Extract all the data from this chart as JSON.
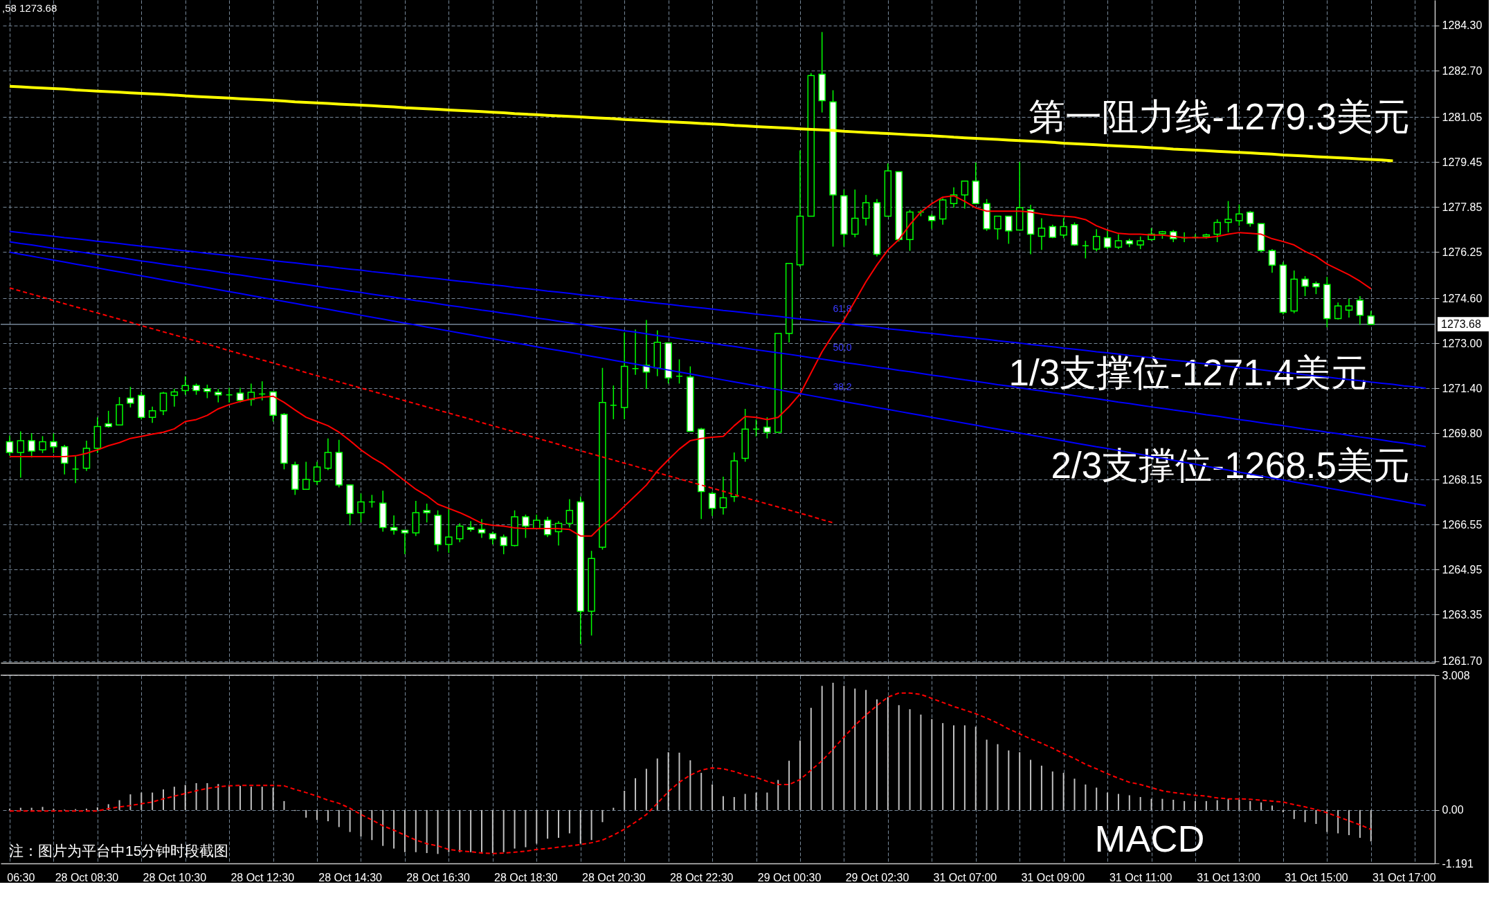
{
  "chart_data": [
    {
      "type": "candlestick",
      "categories": [
        null,
        null,
        null,
        null,
        null,
        null,
        null,
        null,
        null,
        null,
        null,
        null,
        null,
        null,
        null,
        null,
        null,
        null,
        null,
        null,
        null,
        null,
        null,
        null,
        null,
        null,
        null,
        null,
        null,
        null,
        null,
        null,
        null,
        null,
        null,
        null,
        null,
        null,
        null,
        null,
        null,
        null,
        null,
        null,
        null,
        null,
        null,
        null,
        null,
        null,
        null,
        null,
        null,
        null,
        null,
        null,
        null,
        null,
        null,
        null,
        null,
        null,
        null,
        null,
        null,
        null,
        null,
        null,
        null,
        null,
        null,
        null,
        null,
        null,
        null,
        null,
        null,
        null,
        null,
        null,
        null,
        null,
        null,
        null,
        null,
        null,
        null,
        null,
        null,
        null,
        null,
        null,
        null,
        null,
        null,
        null,
        null,
        null,
        null,
        null,
        null,
        null,
        null,
        null,
        null,
        null,
        null,
        null,
        null,
        null,
        null,
        null,
        null,
        null,
        null,
        null,
        null,
        null,
        null,
        null,
        null,
        null,
        null,
        null,
        null,
        null,
        null,
        null,
        null,
        null
      ],
      "ohlc": [
        [
          1269.5,
          1269.72,
          1269.01,
          1269.12
        ],
        [
          1269.12,
          1269.87,
          1268.22,
          1269.54
        ],
        [
          1269.54,
          1269.8,
          1268.94,
          1269.17
        ],
        [
          1269.21,
          1269.7,
          1269.1,
          1269.5
        ],
        [
          1269.5,
          1269.8,
          1269.1,
          1269.32
        ],
        [
          1269.32,
          1269.39,
          1268.34,
          1268.74
        ],
        [
          1268.53,
          1268.99,
          1268.03,
          1268.53
        ],
        [
          1268.56,
          1269.54,
          1268.46,
          1269.27
        ],
        [
          1269.27,
          1270.37,
          1269.1,
          1270.04
        ],
        [
          1270.14,
          1270.6,
          1270.0,
          1270.04
        ],
        [
          1270.1,
          1271.09,
          1270.1,
          1270.82
        ],
        [
          1271.05,
          1271.45,
          1270.72,
          1270.87
        ],
        [
          1271.15,
          1271.27,
          1270.29,
          1270.37
        ],
        [
          1270.37,
          1270.75,
          1270.17,
          1270.6
        ],
        [
          1270.6,
          1271.27,
          1270.45,
          1271.23
        ],
        [
          1271.15,
          1271.38,
          1270.75,
          1271.27
        ],
        [
          1271.32,
          1271.83,
          1271.17,
          1271.5
        ],
        [
          1271.5,
          1271.57,
          1271.17,
          1271.32
        ],
        [
          1271.38,
          1271.53,
          1271.05,
          1271.29
        ],
        [
          1271.26,
          1271.38,
          1270.9,
          1271.17
        ],
        [
          1271.17,
          1271.42,
          1270.9,
          1271.17
        ],
        [
          1271.23,
          1271.42,
          1270.9,
          1270.97
        ],
        [
          1271.0,
          1271.57,
          1270.78,
          1271.26
        ],
        [
          1271.2,
          1271.65,
          1270.97,
          1271.2
        ],
        [
          1271.27,
          1271.27,
          1270.22,
          1270.44
        ],
        [
          1270.47,
          1270.52,
          1268.52,
          1268.74
        ],
        [
          1268.68,
          1268.79,
          1267.61,
          1267.81
        ],
        [
          1267.81,
          1268.79,
          1267.81,
          1268.16
        ],
        [
          1268.09,
          1268.79,
          1267.96,
          1268.6
        ],
        [
          1268.56,
          1269.62,
          1268.49,
          1269.12
        ],
        [
          1269.12,
          1269.57,
          1267.88,
          1267.96
        ],
        [
          1267.96,
          1267.96,
          1266.53,
          1266.95
        ],
        [
          1266.98,
          1267.66,
          1266.63,
          1267.36
        ],
        [
          1267.36,
          1267.61,
          1267.16,
          1267.36
        ],
        [
          1267.32,
          1267.76,
          1266.3,
          1266.45
        ],
        [
          1266.45,
          1266.88,
          1266.2,
          1266.35
        ],
        [
          1266.35,
          1266.35,
          1265.5,
          1266.26
        ],
        [
          1266.26,
          1267.4,
          1266.15,
          1266.98
        ],
        [
          1267.05,
          1267.3,
          1266.63,
          1266.98
        ],
        [
          1266.88,
          1267.06,
          1265.6,
          1265.85
        ],
        [
          1265.85,
          1267.16,
          1265.55,
          1266.11
        ],
        [
          1266.05,
          1266.6,
          1265.93,
          1266.5
        ],
        [
          1266.45,
          1266.68,
          1266.3,
          1266.38
        ],
        [
          1266.38,
          1266.75,
          1266.08,
          1266.26
        ],
        [
          1266.23,
          1266.3,
          1265.85,
          1266.05
        ],
        [
          1266.11,
          1266.2,
          1265.5,
          1265.81
        ],
        [
          1265.81,
          1267.06,
          1265.78,
          1266.83
        ],
        [
          1266.83,
          1266.91,
          1266.08,
          1266.5
        ],
        [
          1266.41,
          1266.91,
          1266.38,
          1266.71
        ],
        [
          1266.71,
          1266.83,
          1266.11,
          1266.2
        ],
        [
          1266.3,
          1266.68,
          1265.81,
          1266.6
        ],
        [
          1266.6,
          1267.46,
          1266.45,
          1267.06
        ],
        [
          1267.36,
          1267.55,
          1262.31,
          1263.47
        ],
        [
          1263.47,
          1265.62,
          1262.61,
          1265.35
        ],
        [
          1265.75,
          1272.13,
          1265.66,
          1270.9
        ],
        [
          1270.8,
          1271.5,
          1270.3,
          1270.8
        ],
        [
          1270.72,
          1273.38,
          1270.3,
          1272.18
        ],
        [
          1272.1,
          1273.49,
          1271.88,
          1272.1
        ],
        [
          1272.22,
          1273.83,
          1271.38,
          1271.98
        ],
        [
          1272.13,
          1273.46,
          1271.83,
          1273.04
        ],
        [
          1273.01,
          1273.01,
          1271.57,
          1271.77
        ],
        [
          1271.83,
          1272.43,
          1271.57,
          1271.83
        ],
        [
          1271.8,
          1272.18,
          1269.87,
          1269.87
        ],
        [
          1269.95,
          1269.99,
          1266.75,
          1267.73
        ],
        [
          1267.66,
          1267.73,
          1266.86,
          1267.13
        ],
        [
          1267.16,
          1268.26,
          1266.91,
          1267.51
        ],
        [
          1267.55,
          1269.12,
          1267.36,
          1268.82
        ],
        [
          1268.91,
          1270.67,
          1268.79,
          1269.95
        ],
        [
          1269.95,
          1270.29,
          1269.69,
          1269.95
        ],
        [
          1270.02,
          1270.37,
          1269.62,
          1269.84
        ],
        [
          1269.84,
          1273.35,
          1269.84,
          1273.35
        ],
        [
          1273.35,
          1275.84,
          1273.03,
          1275.84
        ],
        [
          1275.79,
          1279.86,
          1275.72,
          1277.52
        ],
        [
          1277.52,
          1282.61,
          1277.52,
          1282.52
        ],
        [
          1282.57,
          1284.07,
          1281.21,
          1281.63
        ],
        [
          1281.59,
          1282.0,
          1276.44,
          1278.28
        ],
        [
          1278.25,
          1278.47,
          1276.44,
          1276.88
        ],
        [
          1276.88,
          1278.47,
          1276.77,
          1277.45
        ],
        [
          1277.45,
          1278.28,
          1277.19,
          1278.0
        ],
        [
          1278.0,
          1278.13,
          1276.09,
          1276.17
        ],
        [
          1277.52,
          1279.4,
          1277.52,
          1279.13
        ],
        [
          1279.1,
          1279.1,
          1276.62,
          1276.69
        ],
        [
          1276.69,
          1277.75,
          1276.29,
          1277.67
        ],
        [
          1277.67,
          1277.75,
          1277.52,
          1277.67
        ],
        [
          1277.52,
          1277.6,
          1277.07,
          1277.37
        ],
        [
          1277.42,
          1278.16,
          1277.22,
          1278.1
        ],
        [
          1277.97,
          1278.55,
          1277.82,
          1278.28
        ],
        [
          1278.28,
          1278.77,
          1277.79,
          1278.77
        ],
        [
          1278.77,
          1279.43,
          1277.97,
          1277.97
        ],
        [
          1277.97,
          1278.13,
          1277.0,
          1277.07
        ],
        [
          1277.07,
          1277.52,
          1276.69,
          1277.52
        ],
        [
          1277.52,
          1277.52,
          1276.54,
          1277.0
        ],
        [
          1277.03,
          1279.45,
          1277.03,
          1277.82
        ],
        [
          1277.75,
          1277.93,
          1276.17,
          1276.88
        ],
        [
          1276.81,
          1277.45,
          1276.32,
          1277.1
        ],
        [
          1277.15,
          1277.22,
          1276.74,
          1276.77
        ],
        [
          1276.85,
          1277.45,
          1276.74,
          1277.15
        ],
        [
          1277.22,
          1277.3,
          1276.47,
          1276.5
        ],
        [
          1276.47,
          1276.65,
          1276.02,
          1276.47
        ],
        [
          1276.35,
          1277.06,
          1276.27,
          1276.8
        ],
        [
          1276.75,
          1277.03,
          1276.35,
          1276.42
        ],
        [
          1276.42,
          1276.88,
          1276.35,
          1276.65
        ],
        [
          1276.65,
          1276.72,
          1276.42,
          1276.54
        ],
        [
          1276.5,
          1276.8,
          1276.35,
          1276.65
        ],
        [
          1276.69,
          1277.1,
          1276.65,
          1276.88
        ],
        [
          1276.9,
          1277.0,
          1276.72,
          1276.97
        ],
        [
          1276.97,
          1277.03,
          1276.6,
          1276.72
        ],
        [
          1276.75,
          1276.95,
          1276.6,
          1276.75
        ],
        [
          1276.77,
          1276.88,
          1276.72,
          1276.77
        ],
        [
          1276.8,
          1276.9,
          1276.72,
          1276.86
        ],
        [
          1276.88,
          1277.41,
          1276.6,
          1277.3
        ],
        [
          1277.3,
          1278.06,
          1276.95,
          1277.41
        ],
        [
          1277.36,
          1277.94,
          1277.18,
          1277.6
        ],
        [
          1277.66,
          1277.71,
          1277.15,
          1277.26
        ],
        [
          1277.26,
          1277.26,
          1276.24,
          1276.3
        ],
        [
          1276.3,
          1276.35,
          1275.51,
          1275.78
        ],
        [
          1275.78,
          1275.89,
          1274.03,
          1274.1
        ],
        [
          1274.15,
          1275.59,
          1274.07,
          1275.28
        ],
        [
          1275.28,
          1275.39,
          1274.68,
          1275.03
        ],
        [
          1275.13,
          1275.2,
          1274.75,
          1275.01
        ],
        [
          1275.09,
          1275.36,
          1273.57,
          1273.88
        ],
        [
          1273.88,
          1274.45,
          1273.85,
          1274.33
        ],
        [
          1274.18,
          1274.59,
          1273.92,
          1274.33
        ],
        [
          1274.53,
          1274.68,
          1273.66,
          1274.0
        ],
        [
          1273.97,
          1274.15,
          1273.66,
          1273.68
        ],
        null,
        null,
        null,
        null,
        null
      ],
      "series": [
        {
          "type": "line",
          "color": "#ff0000",
          "values": [
            1268.97,
            1268.97,
            1268.97,
            1268.97,
            1268.97,
            1268.97,
            1269.0,
            1269.09,
            1269.21,
            1269.36,
            1269.47,
            1269.62,
            1269.69,
            1269.77,
            1269.84,
            1269.96,
            1270.22,
            1270.29,
            1270.44,
            1270.67,
            1270.82,
            1270.93,
            1271.02,
            1271.08,
            1271.12,
            1270.9,
            1270.63,
            1270.37,
            1270.22,
            1270.07,
            1269.84,
            1269.54,
            1269.21,
            1268.94,
            1268.71,
            1268.41,
            1268.11,
            1267.81,
            1267.58,
            1267.28,
            1267.13,
            1266.98,
            1266.8,
            1266.6,
            1266.53,
            1266.5,
            1266.44,
            1266.41,
            1266.41,
            1266.41,
            1266.41,
            1266.38,
            1266.15,
            1266.15,
            1266.53,
            1266.83,
            1267.21,
            1267.58,
            1267.96,
            1268.46,
            1268.86,
            1269.24,
            1269.54,
            1269.62,
            1269.66,
            1269.69,
            1270.07,
            1270.4,
            1270.37,
            1270.29,
            1270.37,
            1270.75,
            1271.2,
            1271.95,
            1272.7,
            1273.31,
            1273.83,
            1274.51,
            1275.19,
            1275.79,
            1276.32,
            1276.69,
            1277.22,
            1277.67,
            1277.97,
            1278.2,
            1278.25,
            1278.05,
            1277.82,
            1277.7,
            1277.7,
            1277.7,
            1277.7,
            1277.67,
            1277.6,
            1277.55,
            1277.52,
            1277.49,
            1277.4,
            1277.18,
            1277.03,
            1276.91,
            1276.88,
            1276.88,
            1276.85,
            1276.85,
            1276.8,
            1276.76,
            1276.76,
            1276.76,
            1276.8,
            1276.88,
            1276.94,
            1276.91,
            1276.88,
            1276.72,
            1276.62,
            1276.5,
            1276.27,
            1276.09,
            1275.82,
            1275.63,
            1275.44,
            1275.21,
            1274.94,
            null,
            null,
            null,
            null,
            null
          ]
        },
        {
          "type": "line",
          "color": "#ffff00",
          "values": [
            1282.14,
            1282.12,
            1282.1,
            1282.08,
            1282.06,
            1282.04,
            1282.01,
            1281.99,
            1281.97,
            1281.95,
            1281.93,
            1281.91,
            1281.89,
            1281.87,
            1281.85,
            1281.83,
            1281.8,
            1281.78,
            1281.76,
            1281.74,
            1281.72,
            1281.7,
            1281.68,
            1281.66,
            1281.64,
            1281.62,
            1281.59,
            1281.57,
            1281.55,
            1281.53,
            1281.51,
            1281.49,
            1281.47,
            1281.45,
            1281.43,
            1281.41,
            1281.38,
            1281.36,
            1281.34,
            1281.32,
            1281.3,
            1281.28,
            1281.26,
            1281.24,
            1281.22,
            1281.2,
            1281.17,
            1281.15,
            1281.13,
            1281.11,
            1281.09,
            1281.07,
            1281.05,
            1281.03,
            1281.01,
            1280.99,
            1280.96,
            1280.94,
            1280.92,
            1280.9,
            1280.88,
            1280.86,
            1280.84,
            1280.82,
            1280.8,
            1280.78,
            1280.75,
            1280.73,
            1280.71,
            1280.69,
            1280.67,
            1280.65,
            1280.63,
            1280.61,
            1280.59,
            1280.57,
            1280.54,
            1280.52,
            1280.5,
            1280.48,
            1280.46,
            1280.44,
            1280.42,
            1280.4,
            1280.38,
            1280.36,
            1280.33,
            1280.31,
            1280.29,
            1280.27,
            1280.25,
            1280.23,
            1280.21,
            1280.19,
            1280.17,
            1280.15,
            1280.12,
            1280.1,
            1280.08,
            1280.06,
            1280.04,
            1280.02,
            1280.0,
            1279.98,
            1279.96,
            1279.94,
            1279.91,
            1279.89,
            1279.87,
            1279.85,
            1279.83,
            1279.81,
            1279.79,
            1279.77,
            1279.75,
            1279.73,
            1279.7,
            1279.68,
            1279.66,
            1279.64,
            1279.62,
            1279.6,
            1279.58,
            1279.56,
            1279.54,
            1279.52,
            1279.49,
            null,
            null,
            null
          ]
        },
        {
          "type": "line",
          "color": "#0000ff",
          "values": [
            1276.98,
            1276.94,
            1276.89,
            1276.85,
            1276.81,
            1276.76,
            1276.72,
            1276.68,
            1276.63,
            1276.59,
            1276.55,
            1276.5,
            1276.46,
            1276.42,
            1276.38,
            1276.33,
            1276.29,
            1276.25,
            1276.2,
            1276.16,
            1276.12,
            1276.07,
            1276.03,
            1275.99,
            1275.94,
            1275.9,
            1275.86,
            1275.81,
            1275.77,
            1275.73,
            1275.68,
            1275.64,
            1275.6,
            1275.55,
            1275.51,
            1275.47,
            1275.42,
            1275.38,
            1275.34,
            1275.3,
            1275.25,
            1275.21,
            1275.17,
            1275.12,
            1275.08,
            1275.04,
            1274.99,
            1274.95,
            1274.91,
            1274.86,
            1274.82,
            1274.78,
            1274.73,
            1274.69,
            1274.65,
            1274.6,
            1274.56,
            1274.52,
            1274.47,
            1274.43,
            1274.39,
            1274.34,
            1274.3,
            1274.26,
            1274.22,
            1274.17,
            1274.13,
            1274.09,
            1274.04,
            1274.0,
            1273.96,
            1273.91,
            1273.87,
            1273.83,
            1273.78,
            1273.74,
            1273.7,
            1273.65,
            1273.61,
            1273.57,
            1273.52,
            1273.48,
            1273.44,
            1273.39,
            1273.35,
            1273.31,
            1273.26,
            1273.22,
            1273.18,
            1273.14,
            1273.09,
            1273.05,
            1273.01,
            1272.96,
            1272.92,
            1272.88,
            1272.83,
            1272.79,
            1272.75,
            1272.7,
            1272.66,
            1272.62,
            1272.57,
            1272.53,
            1272.49,
            1272.44,
            1272.4,
            1272.36,
            1272.31,
            1272.27,
            1272.23,
            1272.18,
            1272.14,
            1272.1,
            1272.06,
            1272.01,
            1271.97,
            1271.93,
            1271.88,
            1271.84,
            1271.8,
            1271.75,
            1271.71,
            1271.67,
            1271.62,
            1271.58,
            1271.54,
            1271.49,
            1271.45,
            1271.41
          ]
        },
        {
          "type": "line",
          "color": "#0000ff",
          "values": [
            1276.61,
            1276.55,
            1276.5,
            1276.44,
            1276.38,
            1276.33,
            1276.27,
            1276.22,
            1276.16,
            1276.1,
            1276.05,
            1275.99,
            1275.93,
            1275.88,
            1275.82,
            1275.76,
            1275.71,
            1275.65,
            1275.6,
            1275.54,
            1275.48,
            1275.43,
            1275.37,
            1275.31,
            1275.26,
            1275.2,
            1275.14,
            1275.09,
            1275.03,
            1274.97,
            1274.92,
            1274.86,
            1274.81,
            1274.75,
            1274.69,
            1274.64,
            1274.58,
            1274.52,
            1274.47,
            1274.41,
            1274.35,
            1274.3,
            1274.24,
            1274.18,
            1274.13,
            1274.07,
            1274.02,
            1273.96,
            1273.9,
            1273.85,
            1273.79,
            1273.73,
            1273.68,
            1273.62,
            1273.56,
            1273.51,
            1273.45,
            1273.4,
            1273.34,
            1273.28,
            1273.23,
            1273.17,
            1273.11,
            1273.06,
            1273.0,
            1272.94,
            1272.89,
            1272.83,
            1272.77,
            1272.72,
            1272.66,
            1272.61,
            1272.55,
            1272.49,
            1272.44,
            1272.38,
            1272.32,
            1272.27,
            1272.21,
            1272.15,
            1272.1,
            1272.04,
            1271.99,
            1271.93,
            1271.87,
            1271.82,
            1271.76,
            1271.7,
            1271.65,
            1271.59,
            1271.53,
            1271.48,
            1271.42,
            1271.36,
            1271.31,
            1271.25,
            1271.2,
            1271.14,
            1271.08,
            1271.03,
            1270.97,
            1270.91,
            1270.86,
            1270.8,
            1270.74,
            1270.69,
            1270.63,
            1270.58,
            1270.52,
            1270.46,
            1270.41,
            1270.35,
            1270.29,
            1270.24,
            1270.18,
            1270.12,
            1270.07,
            1270.01,
            1269.95,
            1269.9,
            1269.84,
            1269.79,
            1269.73,
            1269.67,
            1269.62,
            1269.56,
            1269.5,
            1269.45,
            1269.39,
            1269.33
          ]
        },
        {
          "type": "line",
          "color": "#0000ff",
          "values": [
            1276.24,
            1276.17,
            1276.1,
            1276.03,
            1275.96,
            1275.89,
            1275.82,
            1275.75,
            1275.68,
            1275.61,
            1275.54,
            1275.47,
            1275.4,
            1275.33,
            1275.26,
            1275.19,
            1275.12,
            1275.05,
            1274.98,
            1274.91,
            1274.84,
            1274.77,
            1274.7,
            1274.63,
            1274.56,
            1274.49,
            1274.42,
            1274.35,
            1274.28,
            1274.21,
            1274.14,
            1274.07,
            1274.0,
            1273.93,
            1273.86,
            1273.79,
            1273.72,
            1273.65,
            1273.58,
            1273.51,
            1273.44,
            1273.37,
            1273.3,
            1273.23,
            1273.16,
            1273.09,
            1273.02,
            1272.95,
            1272.88,
            1272.81,
            1272.75,
            1272.68,
            1272.61,
            1272.54,
            1272.47,
            1272.4,
            1272.33,
            1272.26,
            1272.19,
            1272.12,
            1272.05,
            1271.98,
            1271.91,
            1271.84,
            1271.77,
            1271.7,
            1271.63,
            1271.56,
            1271.49,
            1271.42,
            1271.35,
            1271.28,
            1271.21,
            1271.14,
            1271.07,
            1271.0,
            1270.93,
            1270.86,
            1270.79,
            1270.72,
            1270.65,
            1270.58,
            1270.51,
            1270.44,
            1270.37,
            1270.3,
            1270.23,
            1270.16,
            1270.09,
            1270.02,
            1269.95,
            1269.88,
            1269.81,
            1269.74,
            1269.67,
            1269.6,
            1269.53,
            1269.46,
            1269.39,
            1269.32,
            1269.26,
            1269.19,
            1269.12,
            1269.05,
            1268.98,
            1268.91,
            1268.84,
            1268.77,
            1268.7,
            1268.63,
            1268.56,
            1268.49,
            1268.42,
            1268.35,
            1268.28,
            1268.21,
            1268.14,
            1268.07,
            1268.0,
            1267.93,
            1267.86,
            1267.79,
            1267.72,
            1267.65,
            1267.58,
            1267.51,
            1267.44,
            1267.37,
            1267.3,
            1267.23
          ]
        },
        {
          "type": "line",
          "color": "#ff0000",
          "line_style": "dashed",
          "values": [
            1274.97,
            1274.86,
            1274.75,
            1274.64,
            1274.52,
            1274.41,
            1274.3,
            1274.19,
            1274.08,
            1273.97,
            1273.86,
            1273.75,
            1273.63,
            1273.52,
            1273.41,
            1273.3,
            1273.19,
            1273.08,
            1272.97,
            1272.86,
            1272.74,
            1272.63,
            1272.52,
            1272.41,
            1272.3,
            1272.19,
            1272.08,
            1271.96,
            1271.85,
            1271.74,
            1271.63,
            1271.52,
            1271.41,
            1271.3,
            1271.19,
            1271.07,
            1270.96,
            1270.85,
            1270.74,
            1270.63,
            1270.52,
            1270.41,
            1270.3,
            1270.18,
            1270.07,
            1269.96,
            1269.85,
            1269.74,
            1269.63,
            1269.52,
            1269.41,
            1269.29,
            1269.18,
            1269.07,
            1268.96,
            1268.85,
            1268.74,
            1268.63,
            1268.51,
            1268.4,
            1268.29,
            1268.18,
            1268.07,
            1267.96,
            1267.85,
            1267.74,
            1267.62,
            1267.51,
            1267.4,
            1267.29,
            1267.18,
            1267.07,
            1266.96,
            1266.85,
            1266.73,
            1266.62,
            null,
            null,
            null,
            null,
            null,
            null,
            null,
            null,
            null,
            null,
            null,
            null,
            null,
            null,
            null,
            null,
            null,
            null,
            null,
            null,
            null,
            null,
            null,
            null,
            null,
            null,
            null,
            null,
            null,
            null,
            null,
            null,
            null,
            null,
            null,
            null,
            null,
            null,
            null,
            null,
            null,
            null,
            null,
            null,
            null,
            null,
            null,
            null,
            null,
            null,
            null,
            null,
            null,
            null
          ]
        }
      ],
      "ylim": [
        1261.64,
        1285.21
      ],
      "yticks": [
        {
          "value": 1284.3,
          "label": "1284.30"
        },
        {
          "value": 1282.7,
          "label": "1282.70"
        },
        1281.05,
        1279.45,
        1277.85,
        1276.25,
        {
          "value": 1274.6,
          "label": "1274.60"
        },
        {
          "value": 1273,
          "label": "1273.00"
        },
        {
          "value": 1271.4,
          "label": "1271.40"
        },
        {
          "value": 1269.8,
          "label": "1269.80"
        },
        1268.15,
        1266.55,
        1264.95,
        1263.35,
        {
          "value": 1261.7,
          "label": "1261.70"
        }
      ],
      "ref_lines": [
        {
          "axis": "y",
          "value": 1273.68,
          "label": "1273.68",
          "color": "#778899"
        }
      ],
      "annotations": [
        ",58 1273.68",
        "第一阻力线-1279.3美元",
        "1/3支撑位-1271.4美元",
        "2/3支撑位-1268.5美元",
        "61.8",
        "50.0",
        "38.2"
      ],
      "grid": true,
      "tick_labels": "y"
    },
    {
      "type": "bar",
      "categories": [
        null,
        "06:30",
        null,
        null,
        null,
        null,
        null,
        "28 Oct 08:30",
        null,
        null,
        null,
        null,
        null,
        null,
        null,
        "28 Oct 10:30",
        null,
        null,
        null,
        null,
        null,
        null,
        null,
        "28 Oct 12:30",
        null,
        null,
        null,
        null,
        null,
        null,
        null,
        "28 Oct 14:30",
        null,
        null,
        null,
        null,
        null,
        null,
        null,
        "28 Oct 16:30",
        null,
        null,
        null,
        null,
        null,
        null,
        null,
        "28 Oct 18:30",
        null,
        null,
        null,
        null,
        null,
        null,
        null,
        "28 Oct 20:30",
        null,
        null,
        null,
        null,
        null,
        null,
        null,
        "28 Oct 22:30",
        null,
        null,
        null,
        null,
        null,
        null,
        null,
        "29 Oct 00:30",
        null,
        null,
        null,
        null,
        null,
        null,
        null,
        "29 Oct 02:30",
        null,
        null,
        null,
        null,
        null,
        null,
        null,
        "31 Oct 07:00",
        null,
        null,
        null,
        null,
        null,
        null,
        null,
        "31 Oct 09:00",
        null,
        null,
        null,
        null,
        null,
        null,
        null,
        "31 Oct 11:00",
        null,
        null,
        null,
        null,
        null,
        null,
        null,
        "31 Oct 13:00",
        null,
        null,
        null,
        null,
        null,
        null,
        null,
        "31 Oct 15:00",
        null,
        null,
        null,
        null,
        null,
        null,
        null,
        "31 Oct 17:00",
        null,
        null
      ],
      "series": [
        {
          "color": "#c0c0c0",
          "values": [
            0.03,
            0.05,
            0.05,
            0.07,
            0.03,
            0.01,
            0.02,
            0.03,
            0.06,
            0.13,
            0.22,
            0.35,
            0.39,
            0.39,
            0.46,
            0.52,
            0.56,
            0.6,
            0.6,
            0.58,
            0.56,
            0.54,
            0.52,
            0.52,
            0.5,
            0.2,
            -0.02,
            -0.17,
            -0.22,
            -0.25,
            -0.38,
            -0.49,
            -0.59,
            -0.67,
            -0.8,
            -0.86,
            -0.94,
            -0.94,
            -0.96,
            -0.98,
            -0.94,
            -0.94,
            -0.94,
            -0.94,
            -0.96,
            -0.94,
            -0.86,
            -0.83,
            -0.75,
            -0.64,
            -0.62,
            -0.52,
            -0.75,
            -0.67,
            -0.27,
            0.05,
            0.43,
            0.71,
            0.92,
            1.15,
            1.29,
            1.28,
            1.11,
            0.83,
            0.57,
            0.31,
            0.29,
            0.36,
            0.39,
            0.39,
            0.67,
            1.1,
            1.55,
            2.28,
            2.77,
            2.84,
            2.77,
            2.71,
            2.68,
            2.47,
            2.52,
            2.34,
            2.25,
            2.13,
            2.03,
            1.94,
            1.89,
            1.89,
            1.86,
            1.57,
            1.47,
            1.33,
            1.29,
            1.12,
            0.99,
            0.86,
            0.83,
            0.7,
            0.57,
            0.5,
            0.39,
            0.36,
            0.33,
            0.29,
            0.25,
            0.25,
            0.23,
            0.2,
            0.2,
            0.2,
            0.22,
            0.25,
            0.23,
            0.2,
            0.17,
            0.1,
            -0.05,
            -0.2,
            -0.27,
            -0.31,
            -0.49,
            -0.52,
            -0.56,
            -0.62,
            -0.7,
            null,
            null,
            null,
            null,
            null
          ]
        },
        {
          "type": "line",
          "color": "#ff0000",
          "line_style": "dashed",
          "values": [
            -0.02,
            -0.02,
            -0.02,
            -0.02,
            -0.02,
            -0.02,
            -0.02,
            -0.02,
            -0.02,
            0.03,
            0.07,
            0.1,
            0.14,
            0.18,
            0.25,
            0.31,
            0.37,
            0.43,
            0.48,
            0.52,
            0.54,
            0.55,
            0.55,
            0.55,
            0.55,
            0.54,
            0.46,
            0.39,
            0.31,
            0.22,
            0.15,
            0.04,
            -0.1,
            -0.22,
            -0.35,
            -0.45,
            -0.56,
            -0.67,
            -0.75,
            -0.8,
            -0.88,
            -0.91,
            -0.93,
            -0.96,
            -0.97,
            -0.96,
            -0.94,
            -0.92,
            -0.88,
            -0.86,
            -0.83,
            -0.8,
            -0.77,
            -0.73,
            -0.67,
            -0.56,
            -0.43,
            -0.27,
            -0.1,
            0.15,
            0.41,
            0.62,
            0.78,
            0.89,
            0.94,
            0.92,
            0.86,
            0.78,
            0.73,
            0.64,
            0.57,
            0.57,
            0.68,
            0.89,
            1.1,
            1.36,
            1.63,
            1.89,
            2.12,
            2.33,
            2.52,
            2.61,
            2.61,
            2.58,
            2.49,
            2.4,
            2.31,
            2.23,
            2.15,
            2.05,
            1.94,
            1.81,
            1.7,
            1.59,
            1.49,
            1.38,
            1.26,
            1.15,
            1.02,
            0.92,
            0.81,
            0.71,
            0.62,
            0.57,
            0.5,
            0.43,
            0.39,
            0.36,
            0.33,
            0.31,
            0.27,
            0.25,
            0.25,
            0.24,
            0.22,
            0.2,
            0.18,
            0.12,
            0.07,
            0.01,
            -0.06,
            -0.15,
            -0.24,
            -0.33,
            -0.43,
            null,
            null,
            null,
            null,
            null
          ]
        }
      ],
      "ylim": [
        -1.191,
        3.008
      ],
      "yticks": [
        3.008,
        {
          "value": 0,
          "label": "0.00"
        },
        -1.191
      ],
      "annotations": [
        "MACD",
        "注：图片为平台中15分钟时段截图"
      ],
      "grid": true
    }
  ]
}
